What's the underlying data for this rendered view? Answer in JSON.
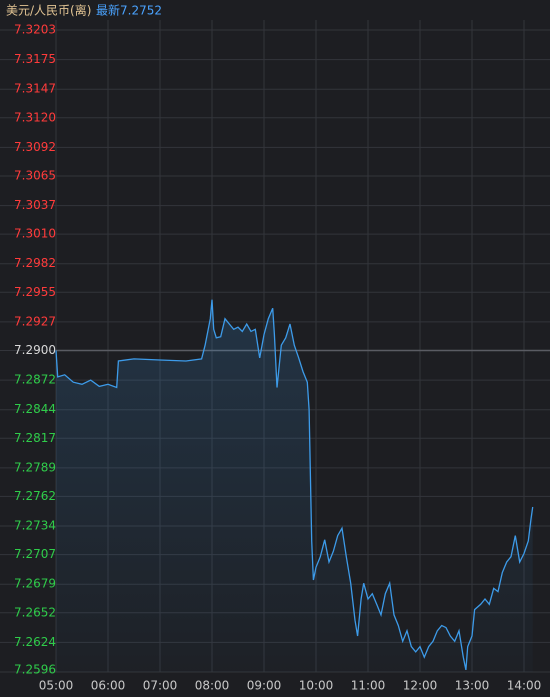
{
  "chart_data": {
    "type": "line",
    "title": "美元/人民币(离)",
    "latest_label": "最新",
    "latest_value": 7.2752,
    "x": [
      "05:00",
      "05:02",
      "05:10",
      "05:20",
      "05:30",
      "05:40",
      "05:50",
      "06:00",
      "06:10",
      "06:12",
      "06:30",
      "07:00",
      "07:30",
      "07:48",
      "07:52",
      "07:58",
      "08:00",
      "08:02",
      "08:05",
      "08:10",
      "08:15",
      "08:20",
      "08:25",
      "08:30",
      "08:35",
      "08:40",
      "08:45",
      "08:50",
      "08:55",
      "09:00",
      "09:05",
      "09:10",
      "09:12",
      "09:15",
      "09:20",
      "09:25",
      "09:30",
      "09:35",
      "09:40",
      "09:45",
      "09:50",
      "09:52",
      "09:55",
      "09:57",
      "10:00",
      "10:05",
      "10:10",
      "10:15",
      "10:20",
      "10:25",
      "10:30",
      "10:35",
      "10:40",
      "10:45",
      "10:48",
      "10:52",
      "10:55",
      "11:00",
      "11:05",
      "11:10",
      "11:15",
      "11:20",
      "11:25",
      "11:30",
      "11:35",
      "11:40",
      "11:45",
      "11:50",
      "11:55",
      "12:00",
      "12:05",
      "12:10",
      "12:15",
      "12:20",
      "12:25",
      "12:30",
      "12:35",
      "12:40",
      "12:45",
      "12:50",
      "12:53",
      "12:55",
      "13:00",
      "13:03",
      "13:10",
      "13:15",
      "13:20",
      "13:25",
      "13:30",
      "13:35",
      "13:40",
      "13:45",
      "13:50",
      "13:55",
      "14:00",
      "14:05",
      "14:08",
      "14:10"
    ],
    "values": [
      7.29,
      7.2875,
      7.2877,
      7.287,
      7.2868,
      7.2872,
      7.2866,
      7.2868,
      7.2865,
      7.289,
      7.2892,
      7.2891,
      7.289,
      7.2892,
      7.2905,
      7.293,
      7.2948,
      7.292,
      7.2912,
      7.2913,
      7.293,
      7.2925,
      7.292,
      7.2922,
      7.2918,
      7.2925,
      7.2918,
      7.292,
      7.2893,
      7.2915,
      7.293,
      7.294,
      7.2915,
      7.2865,
      7.2905,
      7.2912,
      7.2925,
      7.2905,
      7.2893,
      7.288,
      7.287,
      7.2844,
      7.272,
      7.2683,
      7.2695,
      7.2705,
      7.2721,
      7.27,
      7.271,
      7.2725,
      7.2732,
      7.2705,
      7.268,
      7.2645,
      7.263,
      7.2665,
      7.268,
      7.2665,
      7.267,
      7.266,
      7.265,
      7.267,
      7.268,
      7.265,
      7.264,
      7.2625,
      7.2635,
      7.262,
      7.2615,
      7.262,
      7.261,
      7.262,
      7.2625,
      7.2635,
      7.264,
      7.2638,
      7.263,
      7.2625,
      7.2635,
      7.261,
      7.2598,
      7.262,
      7.263,
      7.2655,
      7.266,
      7.2665,
      7.266,
      7.2675,
      7.2672,
      7.269,
      7.27,
      7.2705,
      7.2725,
      7.27,
      7.2708,
      7.272,
      7.274,
      7.2752
    ],
    "color": "#3d9be9",
    "xlim": [
      "05:00",
      "14:15"
    ],
    "xticks": [
      "05:00",
      "06:00",
      "07:00",
      "08:00",
      "09:00",
      "10:00",
      "11:00",
      "12:00",
      "13:00",
      "14:00"
    ],
    "ylim": [
      7.2596,
      7.3203
    ],
    "yticks": [
      7.3203,
      7.3175,
      7.3147,
      {
        "value": 7.312,
        "label": "7.3120"
      },
      7.3092,
      7.3065,
      7.3037,
      {
        "value": 7.301,
        "label": "7.3010"
      },
      7.2982,
      7.2955,
      7.2927,
      {
        "value": 7.29,
        "label": "7.2900"
      },
      7.2872,
      7.2844,
      7.2817,
      7.2789,
      7.2762,
      7.2734,
      7.2707,
      7.2679,
      7.2652,
      7.2624,
      7.2596
    ],
    "reference_line": 7.29,
    "up_color": "#ff3b3b",
    "down_color": "#2fcc4a",
    "flat_color": "#d8d8d8",
    "grid": true
  }
}
